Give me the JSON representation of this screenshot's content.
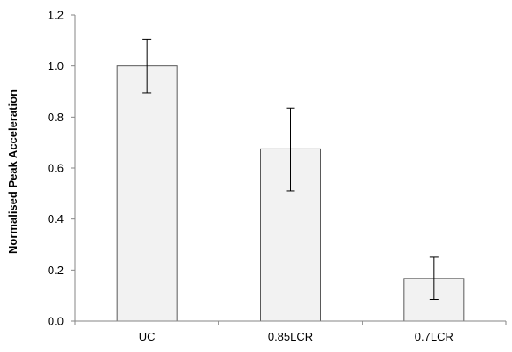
{
  "chart_data": {
    "type": "bar",
    "title": "",
    "xlabel": "",
    "ylabel": "Normalised Peak Acceleration",
    "categories": [
      "UC",
      "0.85LCR",
      "0.7LCR"
    ],
    "values": [
      1.0,
      0.675,
      0.167
    ],
    "error_bars": {
      "lower": [
        0.895,
        0.51,
        0.085
      ],
      "upper": [
        1.105,
        0.835,
        0.25
      ]
    },
    "ylim": [
      0.0,
      1.2
    ],
    "yticks": [
      "0.0",
      "0.2",
      "0.4",
      "0.6",
      "0.8",
      "1.0",
      "1.2"
    ],
    "grid": false,
    "legend": "none",
    "colors": {
      "bar_fill": "#f2f2f2",
      "bar_stroke": "#595959",
      "axis": "#868686",
      "error_bar": "#000000"
    }
  }
}
